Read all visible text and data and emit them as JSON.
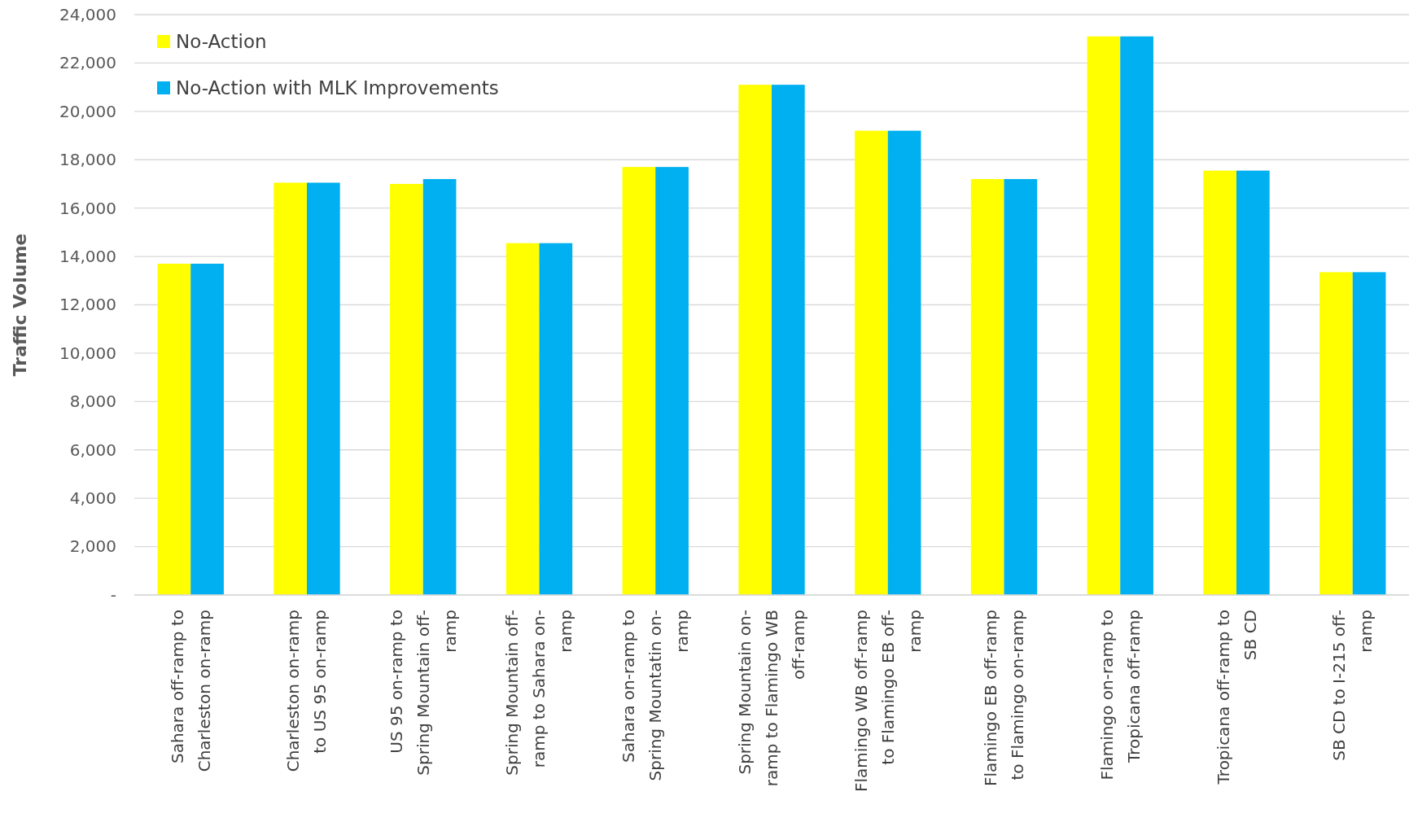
{
  "chart_data": {
    "type": "bar",
    "ylabel": "Traffic Volume",
    "categories": [
      "Sahara off-ramp to Charleston on-ramp",
      "Charleston on-ramp to US 95 on-ramp",
      "US 95 on-ramp to Spring Mountain off-ramp",
      "Spring Mountain off-ramp to Sahara on-ramp",
      "Sahara on-ramp to Spring Mountatin on-ramp",
      "Spring Mountain on-ramp to Flamingo WB off-ramp",
      "Flamingo WB off-ramp to Flamingo EB off-ramp",
      "Flamingo EB off-ramp to Flamingo on-ramp",
      "Flamingo on-ramp to Tropicana off-ramp",
      "Tropicana off-ramp to SB CD",
      "SB CD to I-215 off-ramp"
    ],
    "series": [
      {
        "name": "No-Action",
        "color": "#ffff00",
        "values": [
          13700,
          17050,
          17000,
          14550,
          17700,
          21100,
          19200,
          17200,
          23100,
          17550,
          13350
        ]
      },
      {
        "name": "No-Action with MLK Improvements",
        "color": "#00b0f0",
        "values": [
          13700,
          17050,
          17200,
          14550,
          17700,
          21100,
          19200,
          17200,
          23100,
          17550,
          13350
        ]
      }
    ],
    "ylim": [
      0,
      24000
    ],
    "yticks": [
      {
        "value": 0,
        "label": "-"
      },
      {
        "value": 2000,
        "label": "2,000"
      },
      {
        "value": 4000,
        "label": "4,000"
      },
      {
        "value": 6000,
        "label": "6,000"
      },
      {
        "value": 8000,
        "label": "8,000"
      },
      {
        "value": 10000,
        "label": "10,000"
      },
      {
        "value": 12000,
        "label": "12,000"
      },
      {
        "value": 14000,
        "label": "14,000"
      },
      {
        "value": 16000,
        "label": "16,000"
      },
      {
        "value": 18000,
        "label": "18,000"
      },
      {
        "value": 20000,
        "label": "20,000"
      },
      {
        "value": 22000,
        "label": "22,000"
      },
      {
        "value": 24000,
        "label": "24,000"
      }
    ],
    "grid": "y",
    "legend": "top left"
  }
}
